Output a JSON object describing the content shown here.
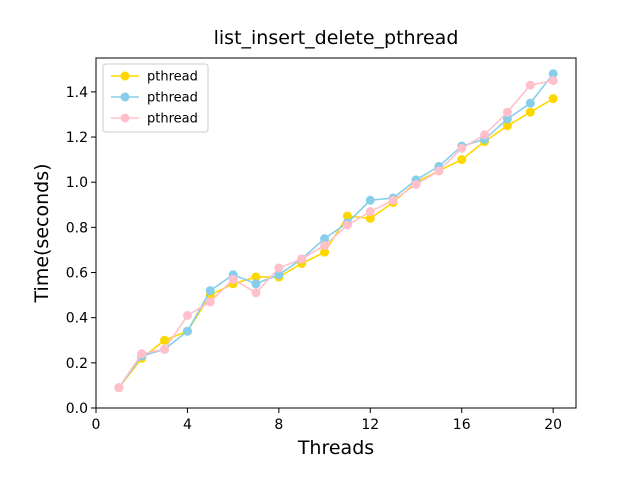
{
  "chart_data": {
    "type": "line",
    "title": "list_insert_delete_pthread",
    "xlabel": "Threads",
    "ylabel": "Time(seconds)",
    "xlim": [
      0,
      21
    ],
    "ylim": [
      0,
      1.55
    ],
    "xticks": [
      0,
      4,
      8,
      12,
      16,
      20
    ],
    "yticks": [
      0.0,
      0.2,
      0.4,
      0.6,
      0.8,
      1.0,
      1.2,
      1.4
    ],
    "xtick_labels": [
      "0",
      "4",
      "8",
      "12",
      "16",
      "20"
    ],
    "ytick_labels": [
      "0.0",
      "0.2",
      "0.4",
      "0.6",
      "0.8",
      "1.0",
      "1.2",
      "1.4"
    ],
    "grid": false,
    "legend_position": "top-left",
    "x": [
      1,
      2,
      3,
      4,
      5,
      6,
      7,
      8,
      9,
      10,
      11,
      12,
      13,
      14,
      15,
      16,
      17,
      18,
      19,
      20
    ],
    "series": [
      {
        "name": "pthread",
        "color": "#FFD700",
        "values": [
          0.09,
          0.22,
          0.3,
          0.34,
          0.5,
          0.55,
          0.58,
          0.58,
          0.64,
          0.69,
          0.85,
          0.84,
          0.91,
          1.0,
          1.05,
          1.1,
          1.18,
          1.25,
          1.31,
          1.37
        ]
      },
      {
        "name": "pthread",
        "color": "#87CEEB",
        "values": [
          0.09,
          0.23,
          0.26,
          0.34,
          0.52,
          0.59,
          0.55,
          0.59,
          0.66,
          0.75,
          0.82,
          0.92,
          0.93,
          1.01,
          1.07,
          1.16,
          1.19,
          1.28,
          1.35,
          1.48
        ]
      },
      {
        "name": "pthread",
        "color": "#FFC0CB",
        "values": [
          0.09,
          0.24,
          0.26,
          0.41,
          0.47,
          0.57,
          0.51,
          0.62,
          0.66,
          0.72,
          0.81,
          0.87,
          0.92,
          0.99,
          1.05,
          1.15,
          1.21,
          1.31,
          1.43,
          1.45
        ]
      }
    ]
  }
}
